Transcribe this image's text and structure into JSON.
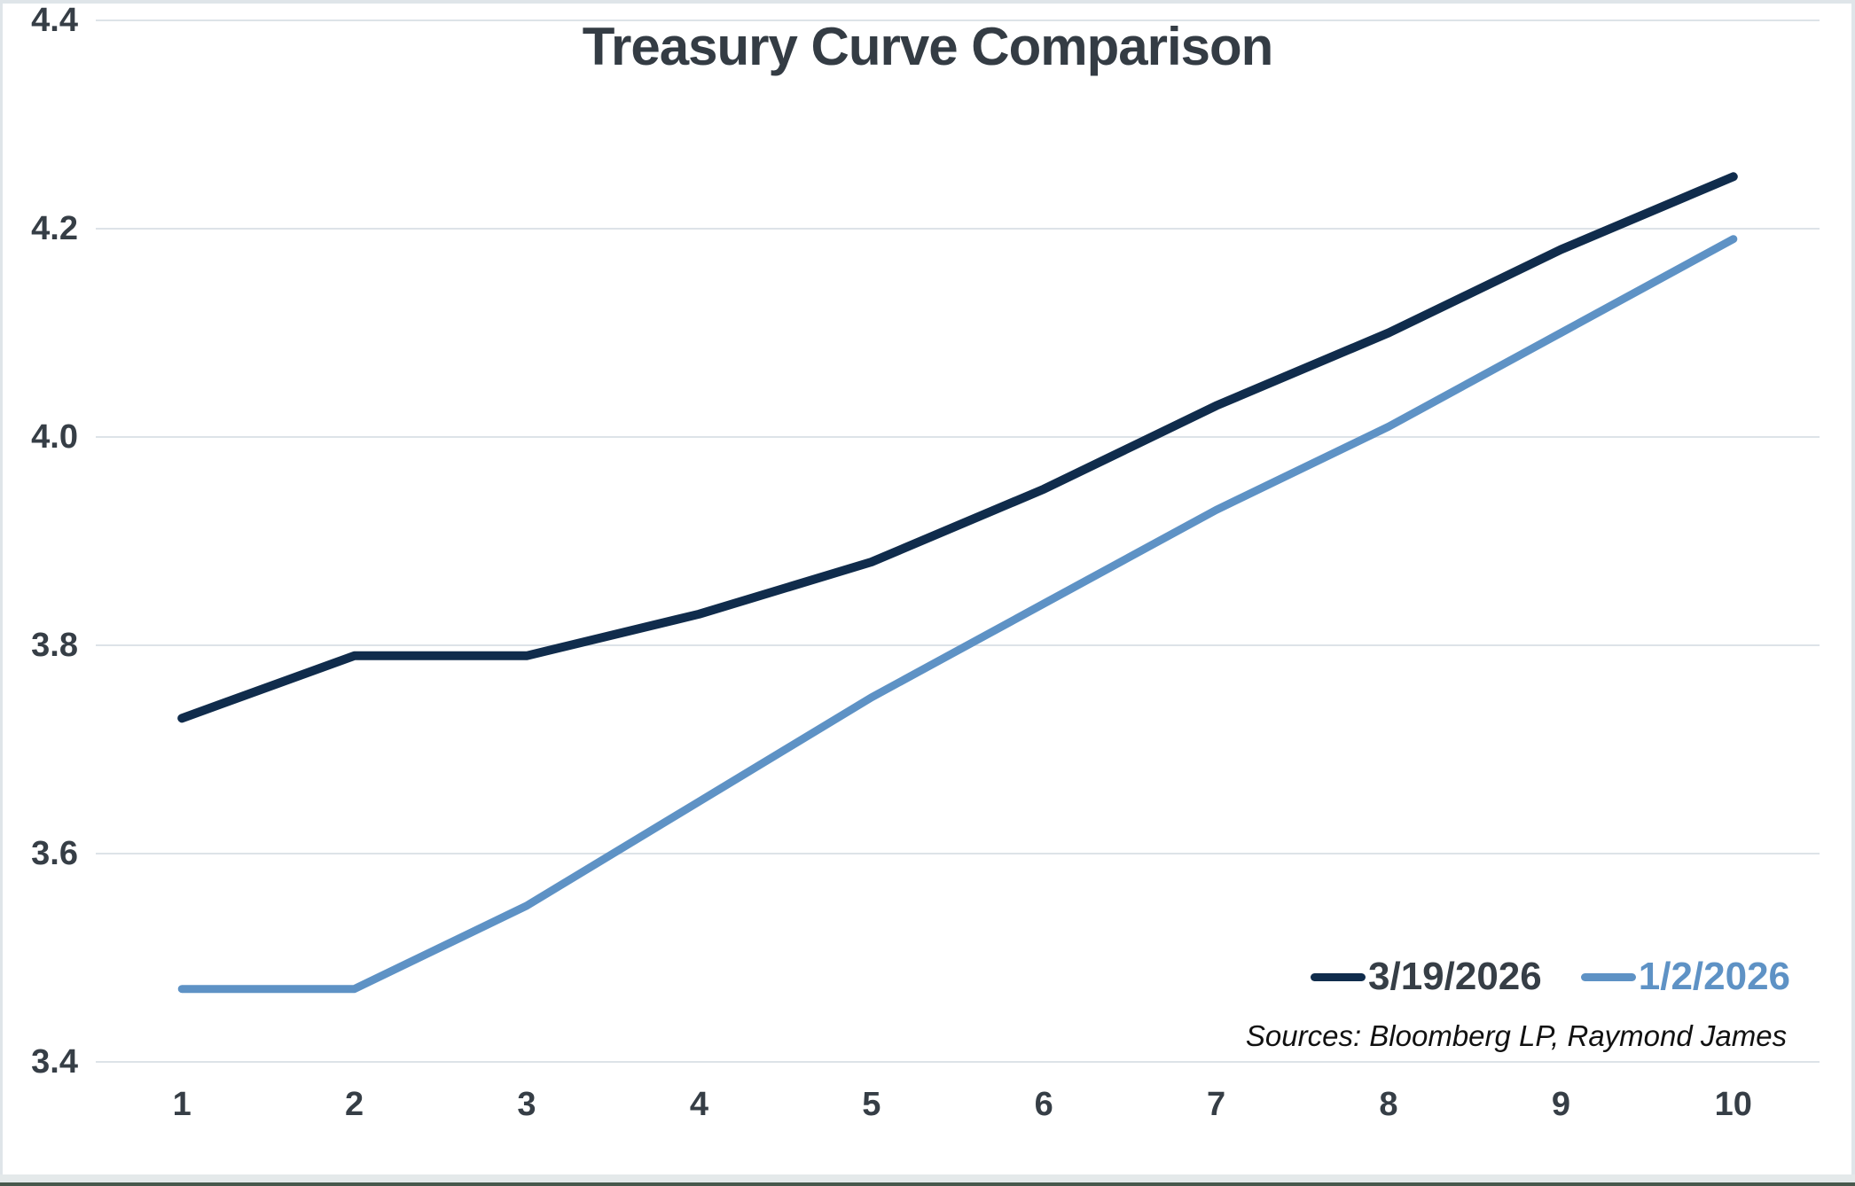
{
  "title": "Treasury Curve Comparison",
  "sources_note": "Sources: Bloomberg LP, Raymond James",
  "colors": {
    "series_dark_navy": "#102c4c",
    "series_steel_blue": "#5e92c5",
    "gridline": "#dde3e8",
    "text_charcoal": "#363e46"
  },
  "legend": [
    {
      "label": "3/19/2026",
      "color": "#363e46",
      "swatch_color": "#102c4c"
    },
    {
      "label": "1/2/2026",
      "color": "#5e92c5",
      "swatch_color": "#5e92c5"
    }
  ],
  "chart_data": {
    "type": "line",
    "title": "Treasury Curve Comparison",
    "xlabel": "",
    "ylabel": "",
    "x": [
      1,
      2,
      3,
      4,
      5,
      6,
      7,
      8,
      9,
      10
    ],
    "x_tick_labels": [
      "1",
      "2",
      "3",
      "4",
      "5",
      "6",
      "7",
      "8",
      "9",
      "10"
    ],
    "series": [
      {
        "name": "3/19/2026",
        "color": "#102c4c",
        "stroke_width": 10,
        "values": [
          3.73,
          3.79,
          3.79,
          3.83,
          3.88,
          3.95,
          4.03,
          4.1,
          4.18,
          4.25
        ]
      },
      {
        "name": "1/2/2026",
        "color": "#5e92c5",
        "stroke_width": 9,
        "values": [
          3.47,
          3.47,
          3.55,
          3.65,
          3.75,
          3.84,
          3.93,
          4.01,
          4.1,
          4.19
        ]
      }
    ],
    "ylim": [
      3.4,
      4.4
    ],
    "y_ticks": [
      4.4,
      4.2,
      4.0,
      3.8,
      3.6,
      3.4
    ],
    "grid": true,
    "legend_position": "inside-bottom-right"
  }
}
